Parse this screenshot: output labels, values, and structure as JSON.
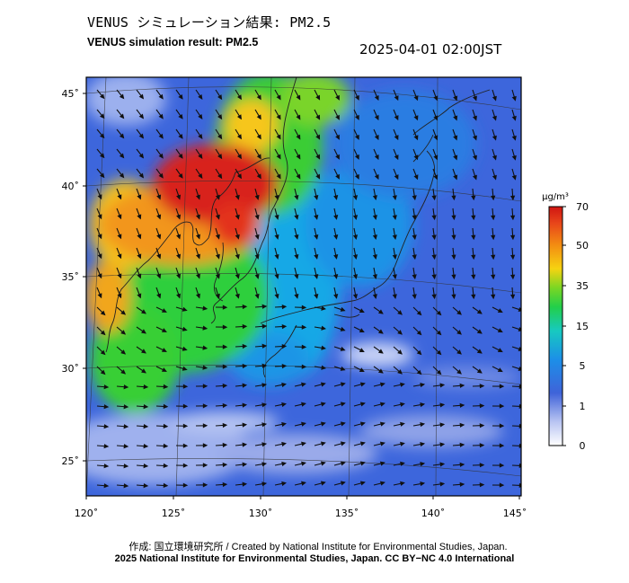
{
  "title_ja": "VENUS シミュレーション結果: PM2.5",
  "title_en": "VENUS simulation result: PM2.5",
  "datetime": "2025-04-01 02:00JST",
  "lat_ticks": [
    "45˚",
    "40˚",
    "35˚",
    "30˚",
    "25˚"
  ],
  "lon_ticks": [
    "120˚",
    "125˚",
    "130˚",
    "135˚",
    "140˚",
    "145˚"
  ],
  "colorbar": {
    "unit": "μg/m³",
    "labels": [
      "70",
      "50",
      "35",
      "15",
      "5",
      "1",
      "0"
    ],
    "colors": [
      "#ffffff",
      "#3f63d9",
      "#1ca6e8",
      "#17c9a0",
      "#39d022",
      "#f6d311",
      "#f06a10",
      "#d81b12"
    ]
  },
  "credit_ja": "作成: 国立環境研究所 / Created by National Institute for Environmental Studies, Japan.",
  "credit_en": "2025 National Institute for Environmental Studies, Japan. CC BY−NC 4.0 International"
}
